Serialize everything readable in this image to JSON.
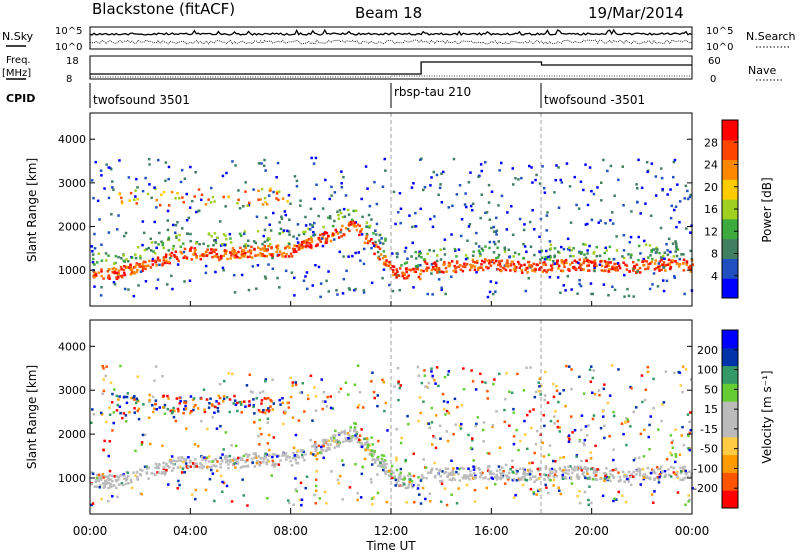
{
  "header": {
    "station": "Blackstone (fitACF)",
    "beam": "Beam 18",
    "date": "19/Mar/2014"
  },
  "noise_panel": {
    "left_label": "N.Sky",
    "right_label": "N.Search",
    "left_ticks": [
      "10^5",
      "10^0"
    ],
    "right_ticks": [
      "10^5",
      "10^0"
    ]
  },
  "freq_panel": {
    "left_label_1": "Freq.",
    "left_label_2": "[MHz]",
    "right_label": "Nave",
    "left_ticks": [
      "18",
      "8"
    ],
    "right_ticks": [
      "60",
      "0"
    ]
  },
  "cpid": {
    "label": "CPID",
    "segments": [
      {
        "name": "twofsound 3501",
        "start_hour": 0
      },
      {
        "name": "rbsp-tau 210",
        "start_hour": 12
      },
      {
        "name": "twofsound -3501",
        "start_hour": 18
      }
    ]
  },
  "time_axis": {
    "label": "Time UT",
    "ticks": [
      "00:00",
      "04:00",
      "08:00",
      "12:00",
      "16:00",
      "20:00",
      "00:00"
    ]
  },
  "colors": {
    "power_scale": [
      "#0000ff",
      "#2050c0",
      "#408060",
      "#3caa3c",
      "#a0d020",
      "#ffcc00",
      "#ff8800",
      "#ff4400",
      "#ff0000"
    ],
    "velocity_scale": [
      "#ff0000",
      "#ff5500",
      "#ff9900",
      "#ffcc44",
      "#bbbbbb",
      "#bbbbbb",
      "#66cc33",
      "#339966",
      "#0033aa",
      "#0000ff"
    ]
  },
  "chart_data": [
    {
      "type": "heatmap",
      "name": "power",
      "ylabel": "Slant Range [km]",
      "xlabel": "Time UT",
      "xlim": [
        0,
        24
      ],
      "ylim": [
        180,
        4600
      ],
      "yticks": [
        1000,
        2000,
        3000,
        4000
      ],
      "colorbar": {
        "label": "Power [dB]",
        "ticks": [
          "4",
          "8",
          "12",
          "16",
          "20",
          "24",
          "28"
        ],
        "range": [
          0,
          30
        ]
      },
      "bands": [
        {
          "t": [
            0,
            12
          ],
          "center": [
            950,
            1350,
            1500,
            1450,
            1500,
            1650,
            2000,
            900
          ],
          "width": 150,
          "level": "strong"
        },
        {
          "t": [
            12,
            24
          ],
          "center": [
            1100,
            1100,
            1050,
            1100,
            1100,
            1150
          ],
          "width": 100,
          "level": "strong"
        }
      ]
    },
    {
      "type": "heatmap",
      "name": "velocity",
      "ylabel": "Slant Range [km]",
      "xlabel": "Time UT",
      "xlim": [
        0,
        24
      ],
      "ylim": [
        180,
        4600
      ],
      "yticks": [
        1000,
        2000,
        3000,
        4000
      ],
      "colorbar": {
        "label": "Velocity [m s⁻¹]",
        "ticks": [
          "-200",
          "-100",
          "-50",
          "-15",
          "15",
          "50",
          "100",
          "200"
        ],
        "range": [
          -250,
          250
        ]
      }
    }
  ]
}
